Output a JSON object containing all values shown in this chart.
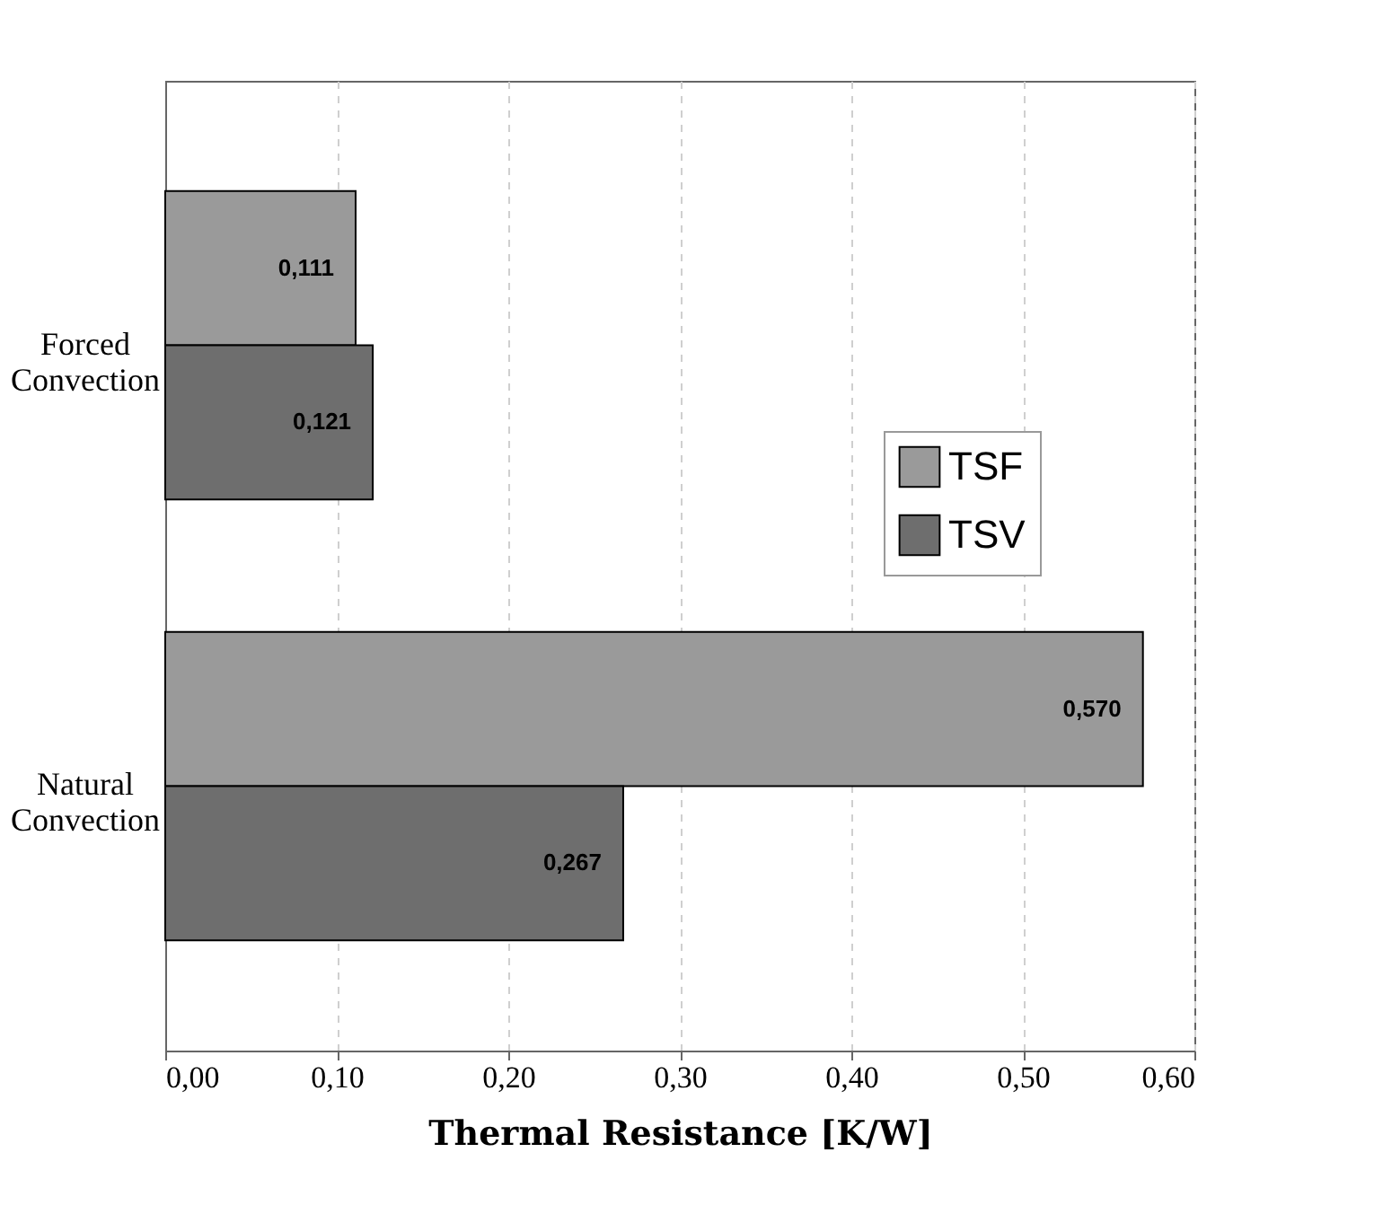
{
  "chart_data": {
    "type": "bar",
    "orientation": "horizontal",
    "xlabel": "Thermal Resistance [K/W]",
    "categories": [
      "Forced Convection",
      "Natural Convection"
    ],
    "series": [
      {
        "name": "TSF",
        "color": "#9a9a9a",
        "values": [
          0.111,
          0.57
        ],
        "value_labels": [
          "0,111",
          "0,570"
        ]
      },
      {
        "name": "TSV",
        "color": "#6e6e6e",
        "values": [
          0.121,
          0.267
        ],
        "value_labels": [
          "0,121",
          "0,267"
        ]
      }
    ],
    "xlim": [
      0,
      0.6
    ],
    "xticks": [
      {
        "value": 0,
        "label": "0,00"
      },
      {
        "value": 0.1,
        "label": "0,10"
      },
      {
        "value": 0.2,
        "label": "0,20"
      },
      {
        "value": 0.3,
        "label": "0,30"
      },
      {
        "value": 0.4,
        "label": "0,40"
      },
      {
        "value": 0.5,
        "label": "0,50"
      },
      {
        "value": 0.6,
        "label": "0,60"
      }
    ],
    "grid": "x",
    "legend": "right"
  }
}
